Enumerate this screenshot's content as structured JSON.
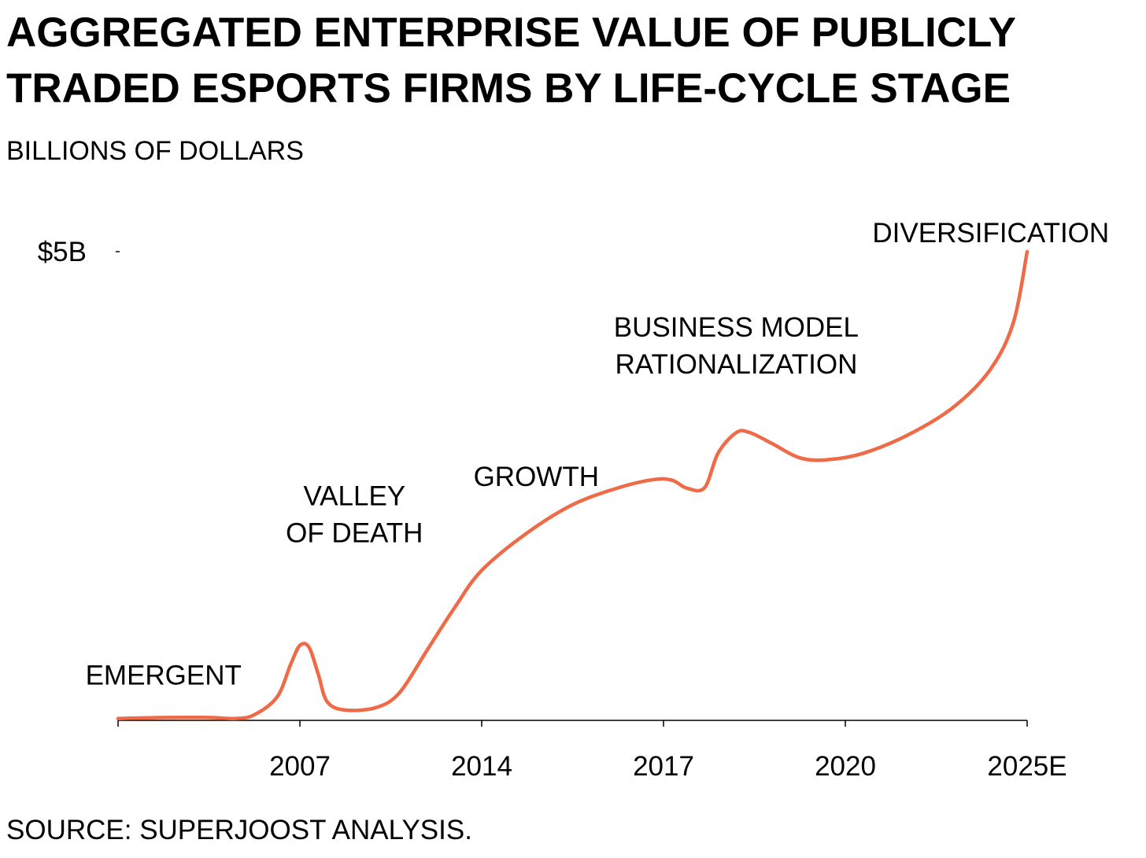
{
  "title_lines": [
    "AGGREGATED ENTERPRISE VALUE OF PUBLICLY",
    "TRADED ESPORTS FIRMS BY LIFE-CYCLE STAGE"
  ],
  "subtitle": "BILLIONS OF DOLLARS",
  "source": "SOURCE: SUPERJOOST ANALYSIS.",
  "line_color": "#ef6a47",
  "chart_data": {
    "type": "line",
    "title": "AGGREGATED ENTERPRISE VALUE OF PUBLICLY TRADED ESPORTS FIRMS BY LIFE-CYCLE STAGE",
    "subtitle": "BILLIONS OF DOLLARS",
    "xlabel": "",
    "ylabel": "",
    "categories": [
      "2007",
      "2014",
      "2017",
      "2020",
      "2025E"
    ],
    "ylim": [
      0,
      5
    ],
    "y_tick_label": "$5B",
    "grid": false,
    "series": [
      {
        "curve": [
          [
            0.0,
            0.02
          ],
          [
            0.5,
            0.03
          ],
          [
            1.0,
            0.03
          ],
          [
            1.3,
            0.02
          ],
          [
            1.5,
            0.06
          ],
          [
            1.75,
            0.25
          ],
          [
            1.9,
            0.6
          ],
          [
            2.0,
            0.8
          ],
          [
            2.1,
            0.78
          ],
          [
            2.2,
            0.5
          ],
          [
            2.3,
            0.2
          ],
          [
            2.5,
            0.11
          ],
          [
            2.85,
            0.14
          ],
          [
            3.1,
            0.3
          ],
          [
            3.4,
            0.75
          ],
          [
            3.7,
            1.2
          ],
          [
            4.0,
            1.6
          ],
          [
            4.5,
            2.0
          ],
          [
            5.0,
            2.3
          ],
          [
            5.5,
            2.48
          ],
          [
            5.9,
            2.57
          ],
          [
            6.1,
            2.56
          ],
          [
            6.25,
            2.48
          ],
          [
            6.45,
            2.48
          ],
          [
            6.6,
            2.85
          ],
          [
            6.8,
            3.07
          ],
          [
            6.95,
            3.07
          ],
          [
            7.2,
            2.95
          ],
          [
            7.5,
            2.8
          ],
          [
            7.8,
            2.78
          ],
          [
            8.2,
            2.85
          ],
          [
            8.7,
            3.05
          ],
          [
            9.2,
            3.35
          ],
          [
            9.6,
            3.75
          ],
          [
            9.85,
            4.25
          ],
          [
            10.0,
            5.0
          ]
        ]
      }
    ],
    "annotations": [
      {
        "lines": [
          "EMERGENT"
        ],
        "x": 0.5,
        "y": 0.38
      },
      {
        "lines": [
          "VALLEY",
          "OF DEATH"
        ],
        "x": 2.6,
        "y": 1.9
      },
      {
        "lines": [
          "GROWTH"
        ],
        "x": 4.6,
        "y": 2.5
      },
      {
        "lines": [
          "BUSINESS MODEL",
          "RATIONALIZATION"
        ],
        "x": 6.8,
        "y": 3.7
      },
      {
        "lines": [
          "DIVERSIFICATION"
        ],
        "x": 9.6,
        "y": 5.1
      }
    ],
    "x_ticks": [
      {
        "x": 0,
        "label": ""
      },
      {
        "x": 2,
        "label": "2007"
      },
      {
        "x": 4,
        "label": "2014"
      },
      {
        "x": 6,
        "label": "2017"
      },
      {
        "x": 8,
        "label": "2020"
      },
      {
        "x": 10,
        "label": "2025E"
      }
    ]
  }
}
